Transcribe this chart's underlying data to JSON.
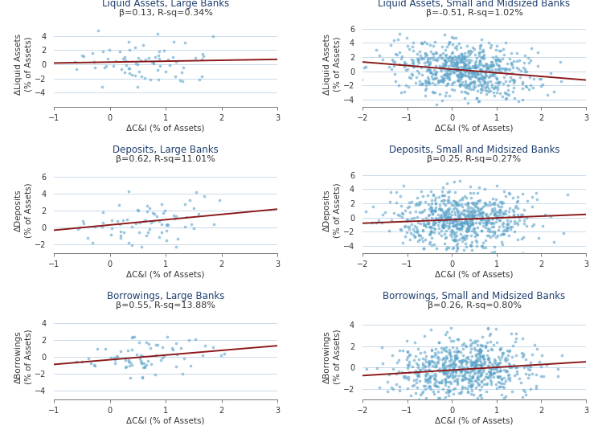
{
  "panels": [
    {
      "title": "Liquid Assets, Large Banks",
      "beta_label": "β=0.13, R-sq=0.34%",
      "ylabel": "ΔLiquid Assets\n(% of Assets)",
      "xlabel": "ΔC&I (% of Assets)",
      "xlim": [
        -1,
        3
      ],
      "ylim": [
        -6,
        6
      ],
      "xticks": [
        -1,
        0,
        1,
        2,
        3
      ],
      "yticks": [
        -4,
        -2,
        0,
        2,
        4
      ],
      "beta": 0.13,
      "intercept": 0.3,
      "n_points": 75,
      "x_center": 0.65,
      "x_std": 0.65,
      "y_std": 1.8,
      "seed": 42
    },
    {
      "title": "Liquid Assets, Small and Midsized Banks",
      "beta_label": "β=-0.51, R-sq=1.02%",
      "ylabel": "ΔLiquid Assets\n(% of Assets)",
      "xlabel": "ΔC&I (% of Assets)",
      "xlim": [
        -2,
        3
      ],
      "ylim": [
        -5,
        7
      ],
      "xticks": [
        -2,
        -1,
        0,
        1,
        2,
        3
      ],
      "yticks": [
        -4,
        -2,
        0,
        2,
        4,
        6
      ],
      "beta": -0.51,
      "intercept": 0.3,
      "n_points": 700,
      "x_center": 0.25,
      "x_std": 0.75,
      "y_std": 1.9,
      "seed": 43
    },
    {
      "title": "Deposits, Large Banks",
      "beta_label": "β=0.62, R-sq=11.01%",
      "ylabel": "ΔDeposits\n(% of Assets)",
      "xlabel": "ΔC&I (% of Assets)",
      "xlim": [
        -1,
        3
      ],
      "ylim": [
        -3,
        7
      ],
      "xticks": [
        -1,
        0,
        1,
        2,
        3
      ],
      "yticks": [
        -2,
        0,
        2,
        4,
        6
      ],
      "beta": 0.62,
      "intercept": 0.3,
      "n_points": 75,
      "x_center": 0.65,
      "x_std": 0.65,
      "y_std": 1.3,
      "seed": 44
    },
    {
      "title": "Deposits, Small and Midsized Banks",
      "beta_label": "β=0.25, R-sq=0.27%",
      "ylabel": "ΔDeposits\n(% of Assets)",
      "xlabel": "ΔC&I (% of Assets)",
      "xlim": [
        -2,
        3
      ],
      "ylim": [
        -5,
        7
      ],
      "xticks": [
        -2,
        -1,
        0,
        1,
        2,
        3
      ],
      "yticks": [
        -4,
        -2,
        0,
        2,
        4,
        6
      ],
      "beta": 0.25,
      "intercept": -0.3,
      "n_points": 700,
      "x_center": 0.25,
      "x_std": 0.75,
      "y_std": 1.9,
      "seed": 45
    },
    {
      "title": "Borrowings, Large Banks",
      "beta_label": "β=0.55, R-sq=13.88%",
      "ylabel": "ΔBorrowings\n(% of Assets)",
      "xlabel": "ΔC&I (% of Assets)",
      "xlim": [
        -1,
        3
      ],
      "ylim": [
        -5,
        5
      ],
      "xticks": [
        -1,
        0,
        1,
        2,
        3
      ],
      "yticks": [
        -4,
        -2,
        0,
        2,
        4
      ],
      "beta": 0.55,
      "intercept": -0.35,
      "n_points": 75,
      "x_center": 0.65,
      "x_std": 0.65,
      "y_std": 1.2,
      "seed": 46
    },
    {
      "title": "Borrowings, Small and Midsized Banks",
      "beta_label": "β=0.26, R-sq=0.80%",
      "ylabel": "ΔBorrowings\n(% of Assets)",
      "xlabel": "ΔC&I (% of Assets)",
      "xlim": [
        -2,
        3
      ],
      "ylim": [
        -3,
        5
      ],
      "xticks": [
        -2,
        -1,
        0,
        1,
        2,
        3
      ],
      "yticks": [
        -2,
        0,
        2,
        4
      ],
      "beta": 0.26,
      "intercept": -0.25,
      "n_points": 700,
      "x_center": 0.25,
      "x_std": 0.75,
      "y_std": 1.4,
      "seed": 47
    }
  ],
  "scatter_color": "#5BA3C9",
  "line_color": "#8B1A1A",
  "title_color": "#1F3F6E",
  "beta_color": "#333333",
  "grid_color": "#C0D4E8",
  "scatter_alpha": 0.6,
  "scatter_size": 7,
  "line_width": 1.4,
  "title_fontsize": 8.5,
  "beta_fontsize": 8.0,
  "label_fontsize": 7.5,
  "tick_fontsize": 7.0
}
